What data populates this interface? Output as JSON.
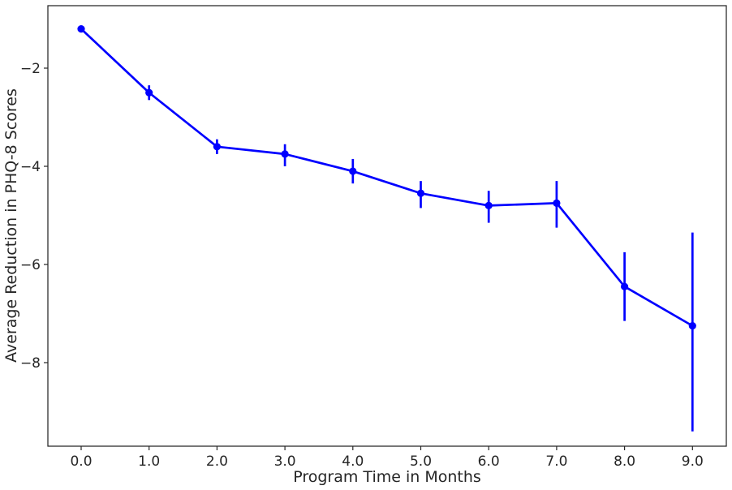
{
  "chart_data": {
    "type": "line",
    "title": "",
    "xlabel": "Program Time in Months",
    "ylabel": "Average Reduction in PHQ-8 Scores",
    "x_categories": [
      "0.0",
      "1.0",
      "2.0",
      "3.0",
      "4.0",
      "5.0",
      "6.0",
      "7.0",
      "8.0",
      "9.0"
    ],
    "y_ticks": [
      -2,
      -4,
      -6,
      -8
    ],
    "ylim": [
      -9.8,
      -0.7
    ],
    "grid": false,
    "legend": "none",
    "series": [
      {
        "values": [
          -1.2,
          -2.5,
          -3.6,
          -3.75,
          -4.1,
          -4.55,
          -4.8,
          -4.75,
          -6.45,
          -7.25
        ],
        "error_low": [
          -1.25,
          -2.65,
          -3.75,
          -4.0,
          -4.35,
          -4.85,
          -5.15,
          -5.25,
          -7.15,
          -9.4
        ],
        "error_high": [
          -1.15,
          -2.35,
          -3.45,
          -3.55,
          -3.85,
          -4.3,
          -4.5,
          -4.3,
          -5.75,
          -5.35
        ],
        "color": "#0000ff"
      }
    ]
  }
}
